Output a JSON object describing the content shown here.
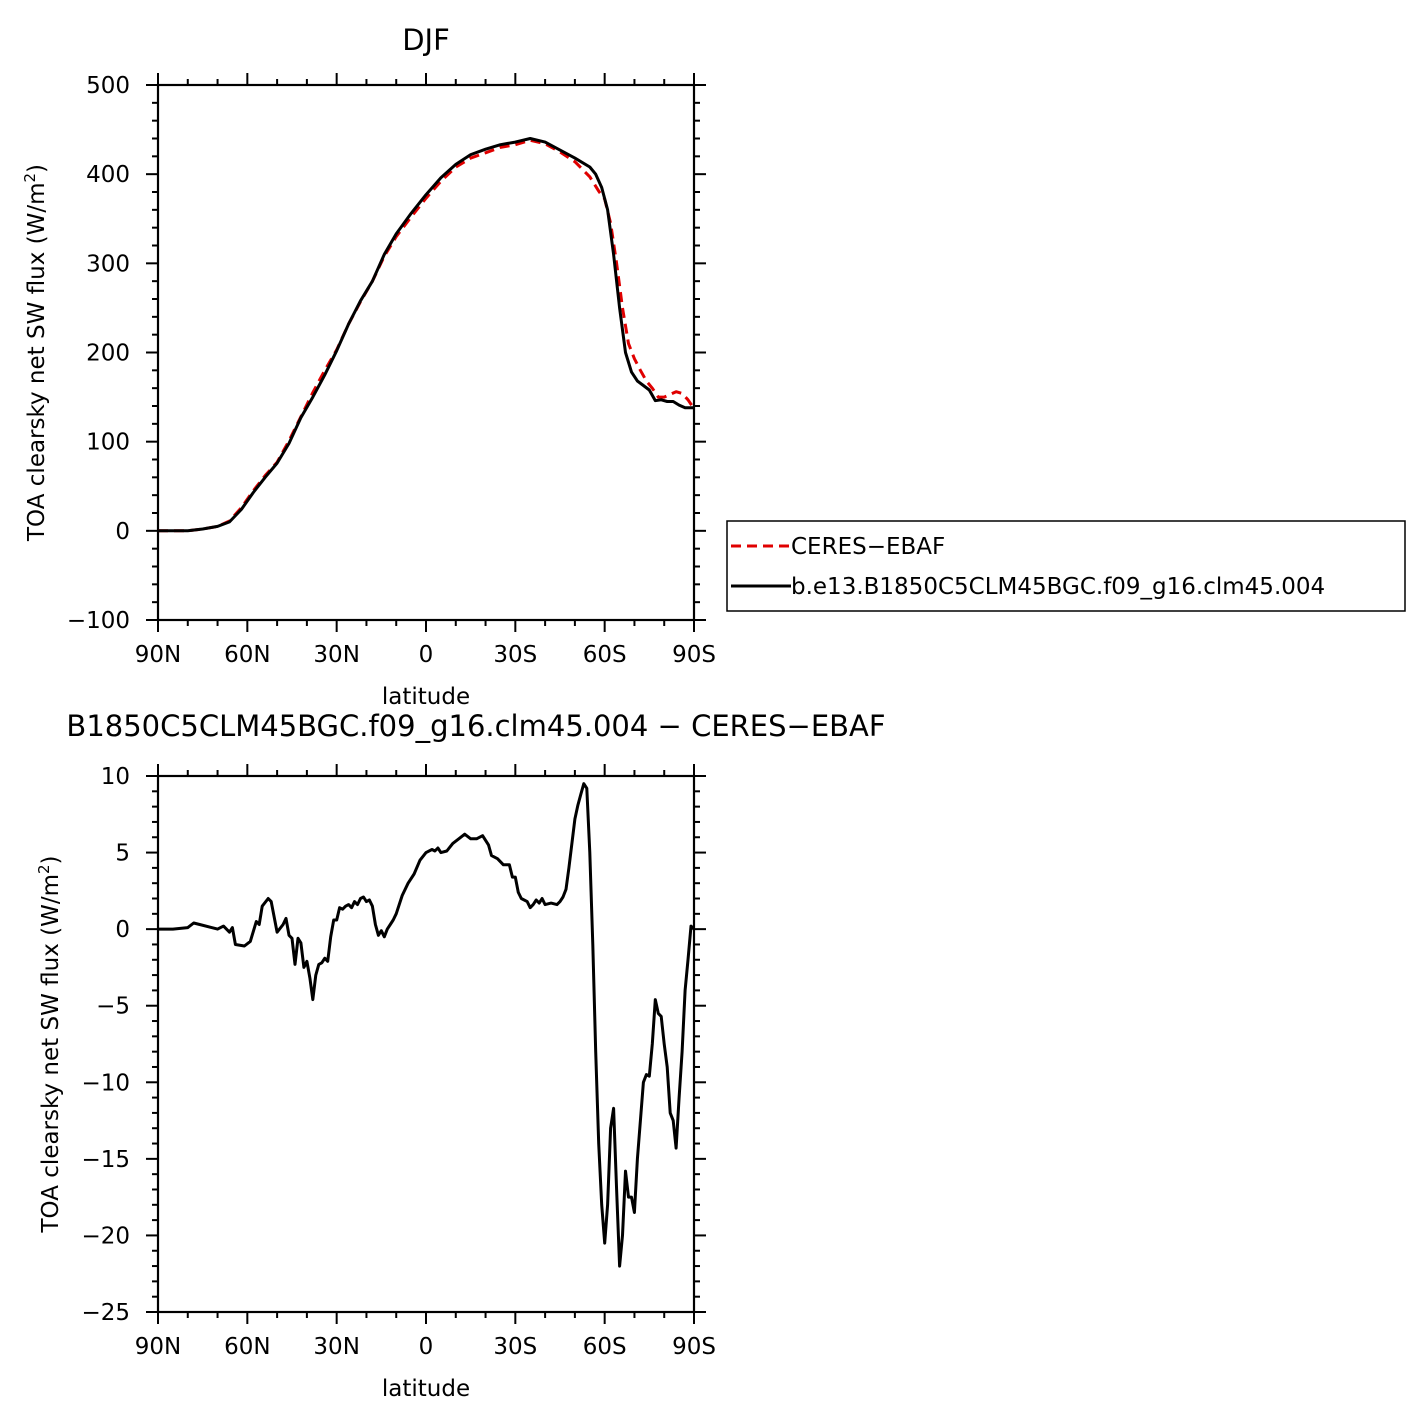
{
  "chart_data": [
    {
      "type": "line",
      "title": "DJF",
      "xlabel": "latitude",
      "ylabel": "TOA clearsky net SW flux (W/m",
      "ylabel_sup": "2",
      "ylabel_close": ")",
      "xlim": [
        90,
        -90
      ],
      "ylim": [
        -100,
        500
      ],
      "x_ticks": [
        {
          "value": 90,
          "label": "90N"
        },
        {
          "value": 60,
          "label": "60N"
        },
        {
          "value": 30,
          "label": "30N"
        },
        {
          "value": 0,
          "label": "0"
        },
        {
          "value": -30,
          "label": "30S"
        },
        {
          "value": -60,
          "label": "60S"
        },
        {
          "value": -90,
          "label": "90S"
        }
      ],
      "y_ticks": [
        {
          "value": 500,
          "label": "500"
        },
        {
          "value": 400,
          "label": "400"
        },
        {
          "value": 300,
          "label": "300"
        },
        {
          "value": 200,
          "label": "200"
        },
        {
          "value": 100,
          "label": "100"
        },
        {
          "value": 0,
          "label": "0"
        },
        {
          "value": -100,
          "label": "−100"
        }
      ],
      "legend": {
        "placement": "right",
        "entries": [
          {
            "name": "CERES−EBAF",
            "color": "#e00000",
            "dash": true
          },
          {
            "name": "b.e13.B1850C5CLM45BGC.f09_g16.clm45.004",
            "color": "#000000",
            "dash": false
          }
        ]
      },
      "series": [
        {
          "name": "CERES−EBAF",
          "color": "#e00000",
          "dash": true,
          "points": [
            [
              90,
              0
            ],
            [
              85,
              0
            ],
            [
              80,
              0
            ],
            [
              75,
              2
            ],
            [
              70,
              5
            ],
            [
              66,
              11
            ],
            [
              62,
              26
            ],
            [
              58,
              45
            ],
            [
              54,
              62
            ],
            [
              50,
              77
            ],
            [
              46,
              101
            ],
            [
              42,
              128
            ],
            [
              38,
              155
            ],
            [
              34,
              180
            ],
            [
              30,
              203
            ],
            [
              26,
              232
            ],
            [
              22,
              257
            ],
            [
              18,
              280
            ],
            [
              14,
              308
            ],
            [
              10,
              330
            ],
            [
              5,
              352
            ],
            [
              0,
              373
            ],
            [
              -5,
              392
            ],
            [
              -10,
              408
            ],
            [
              -15,
              418
            ],
            [
              -20,
              424
            ],
            [
              -25,
              430
            ],
            [
              -30,
              433
            ],
            [
              -35,
              438
            ],
            [
              -40,
              434
            ],
            [
              -45,
              425
            ],
            [
              -50,
              414
            ],
            [
              -55,
              397
            ],
            [
              -58,
              381
            ],
            [
              -60,
              372
            ],
            [
              -62,
              345
            ],
            [
              -64,
              300
            ],
            [
              -66,
              250
            ],
            [
              -68,
              210
            ],
            [
              -70,
              193
            ],
            [
              -72,
              180
            ],
            [
              -74,
              168
            ],
            [
              -76,
              160
            ],
            [
              -78,
              150
            ],
            [
              -80,
              150
            ],
            [
              -82,
              153
            ],
            [
              -84,
              156
            ],
            [
              -86,
              154
            ],
            [
              -88,
              147
            ],
            [
              -90,
              137
            ]
          ]
        },
        {
          "name": "b.e13.B1850C5CLM45BGC.f09_g16.clm45.004",
          "color": "#000000",
          "dash": false,
          "points": [
            [
              90,
              0
            ],
            [
              85,
              0
            ],
            [
              80,
              0
            ],
            [
              75,
              2
            ],
            [
              70,
              5
            ],
            [
              66,
              10
            ],
            [
              62,
              24
            ],
            [
              58,
              43
            ],
            [
              54,
              60
            ],
            [
              50,
              76
            ],
            [
              46,
              98
            ],
            [
              42,
              127
            ],
            [
              38,
              150
            ],
            [
              34,
              175
            ],
            [
              30,
              202
            ],
            [
              26,
              232
            ],
            [
              22,
              258
            ],
            [
              18,
              280
            ],
            [
              14,
              310
            ],
            [
              10,
              333
            ],
            [
              5,
              356
            ],
            [
              0,
              377
            ],
            [
              -5,
              396
            ],
            [
              -10,
              411
            ],
            [
              -15,
              422
            ],
            [
              -20,
              428
            ],
            [
              -25,
              433
            ],
            [
              -30,
              436
            ],
            [
              -35,
              440
            ],
            [
              -40,
              436
            ],
            [
              -45,
              427
            ],
            [
              -50,
              418
            ],
            [
              -55,
              408
            ],
            [
              -57,
              400
            ],
            [
              -59,
              385
            ],
            [
              -61,
              360
            ],
            [
              -63,
              310
            ],
            [
              -65,
              250
            ],
            [
              -67,
              200
            ],
            [
              -69,
              178
            ],
            [
              -71,
              168
            ],
            [
              -73,
              163
            ],
            [
              -75,
              158
            ],
            [
              -77,
              146
            ],
            [
              -79,
              147
            ],
            [
              -81,
              145
            ],
            [
              -83,
              145
            ],
            [
              -85,
              141
            ],
            [
              -87,
              138
            ],
            [
              -90,
              138
            ]
          ]
        }
      ]
    },
    {
      "type": "line",
      "title": "B1850C5CLM45BGC.f09_g16.clm45.004 − CERES−EBAF",
      "xlabel": "latitude",
      "ylabel": "TOA clearsky net SW flux (W/m",
      "ylabel_sup": "2",
      "ylabel_close": ")",
      "xlim": [
        90,
        -90
      ],
      "ylim": [
        -25,
        10
      ],
      "x_ticks": [
        {
          "value": 90,
          "label": "90N"
        },
        {
          "value": 60,
          "label": "60N"
        },
        {
          "value": 30,
          "label": "30N"
        },
        {
          "value": 0,
          "label": "0"
        },
        {
          "value": -30,
          "label": "30S"
        },
        {
          "value": -60,
          "label": "60S"
        },
        {
          "value": -90,
          "label": "90S"
        }
      ],
      "y_ticks": [
        {
          "value": 10,
          "label": "10"
        },
        {
          "value": 5,
          "label": "5"
        },
        {
          "value": 0,
          "label": "0"
        },
        {
          "value": -5,
          "label": "−5"
        },
        {
          "value": -10,
          "label": "−10"
        },
        {
          "value": -15,
          "label": "−15"
        },
        {
          "value": -20,
          "label": "−20"
        },
        {
          "value": -25,
          "label": "−25"
        }
      ],
      "series": [
        {
          "name": "",
          "color": "#000000",
          "dash": false,
          "points": [
            [
              90,
              0
            ],
            [
              85,
              0
            ],
            [
              80,
              0.1
            ],
            [
              78,
              0.4
            ],
            [
              76,
              0.3
            ],
            [
              72,
              0.1
            ],
            [
              70,
              0
            ],
            [
              68,
              0.2
            ],
            [
              66,
              -0.2
            ],
            [
              65,
              0.1
            ],
            [
              64,
              -1
            ],
            [
              61,
              -1.1
            ],
            [
              59,
              -0.8
            ],
            [
              57,
              0.5
            ],
            [
              56,
              0.3
            ],
            [
              55,
              1.5
            ],
            [
              53,
              2
            ],
            [
              52,
              1.8
            ],
            [
              50,
              -0.2
            ],
            [
              48,
              0.3
            ],
            [
              47,
              0.7
            ],
            [
              46,
              -0.4
            ],
            [
              45,
              -0.6
            ],
            [
              44,
              -2.3
            ],
            [
              43,
              -0.6
            ],
            [
              42,
              -0.9
            ],
            [
              41,
              -2.5
            ],
            [
              40,
              -2.1
            ],
            [
              39,
              -3.2
            ],
            [
              38,
              -4.6
            ],
            [
              37,
              -3
            ],
            [
              36,
              -2.3
            ],
            [
              35,
              -2.2
            ],
            [
              34,
              -1.9
            ],
            [
              33,
              -2.1
            ],
            [
              32,
              -0.5
            ],
            [
              31,
              0.6
            ],
            [
              30,
              0.6
            ],
            [
              29,
              1.4
            ],
            [
              28,
              1.3
            ],
            [
              27,
              1.5
            ],
            [
              26,
              1.6
            ],
            [
              25,
              1.4
            ],
            [
              24,
              1.8
            ],
            [
              23,
              1.6
            ],
            [
              22,
              2
            ],
            [
              21,
              2.1
            ],
            [
              20,
              1.8
            ],
            [
              19,
              1.9
            ],
            [
              18,
              1.5
            ],
            [
              17,
              0.3
            ],
            [
              16,
              -0.4
            ],
            [
              15,
              -0.1
            ],
            [
              14,
              -0.5
            ],
            [
              13,
              0
            ],
            [
              12,
              0.3
            ],
            [
              11,
              0.6
            ],
            [
              10,
              1
            ],
            [
              8,
              2.2
            ],
            [
              6,
              3
            ],
            [
              4,
              3.6
            ],
            [
              2,
              4.5
            ],
            [
              0,
              5
            ],
            [
              -2,
              5.2
            ],
            [
              -3,
              5.1
            ],
            [
              -4,
              5.3
            ],
            [
              -5,
              5
            ],
            [
              -7,
              5.1
            ],
            [
              -9,
              5.6
            ],
            [
              -11,
              5.9
            ],
            [
              -13,
              6.2
            ],
            [
              -15,
              5.9
            ],
            [
              -17,
              5.9
            ],
            [
              -19,
              6.1
            ],
            [
              -21,
              5.5
            ],
            [
              -22,
              4.8
            ],
            [
              -24,
              4.6
            ],
            [
              -26,
              4.2
            ],
            [
              -28,
              4.2
            ],
            [
              -29,
              3.4
            ],
            [
              -30,
              3.4
            ],
            [
              -31,
              2.4
            ],
            [
              -32,
              2
            ],
            [
              -34,
              1.8
            ],
            [
              -35,
              1.4
            ],
            [
              -36,
              1.6
            ],
            [
              -37,
              1.9
            ],
            [
              -38,
              1.7
            ],
            [
              -39,
              2
            ],
            [
              -40,
              1.6
            ],
            [
              -42,
              1.7
            ],
            [
              -44,
              1.6
            ],
            [
              -45,
              1.8
            ],
            [
              -46,
              2.1
            ],
            [
              -47,
              2.6
            ],
            [
              -48,
              4
            ],
            [
              -49,
              5.6
            ],
            [
              -50,
              7.2
            ],
            [
              -51,
              8.1
            ],
            [
              -52,
              8.8
            ],
            [
              -53,
              9.5
            ],
            [
              -54,
              9.2
            ],
            [
              -55,
              5
            ],
            [
              -56,
              -1
            ],
            [
              -57,
              -8
            ],
            [
              -58,
              -14
            ],
            [
              -59,
              -18
            ],
            [
              -60,
              -20.5
            ],
            [
              -61,
              -18
            ],
            [
              -62,
              -13
            ],
            [
              -63,
              -11.7
            ],
            [
              -64,
              -17
            ],
            [
              -65,
              -22
            ],
            [
              -66,
              -20
            ],
            [
              -67,
              -15.8
            ],
            [
              -68,
              -17.5
            ],
            [
              -69,
              -17.5
            ],
            [
              -70,
              -18.5
            ],
            [
              -71,
              -15
            ],
            [
              -72,
              -12.5
            ],
            [
              -73,
              -10
            ],
            [
              -74,
              -9.5
            ],
            [
              -75,
              -9.6
            ],
            [
              -76,
              -7.5
            ],
            [
              -77,
              -4.6
            ],
            [
              -78,
              -5.5
            ],
            [
              -79,
              -5.7
            ],
            [
              -80,
              -7.5
            ],
            [
              -81,
              -9
            ],
            [
              -82,
              -12
            ],
            [
              -83,
              -12.5
            ],
            [
              -84,
              -14.3
            ],
            [
              -85,
              -11
            ],
            [
              -86,
              -8
            ],
            [
              -87,
              -4
            ],
            [
              -88,
              -2
            ],
            [
              -89,
              0.2
            ],
            [
              -90,
              0
            ]
          ]
        }
      ]
    }
  ]
}
